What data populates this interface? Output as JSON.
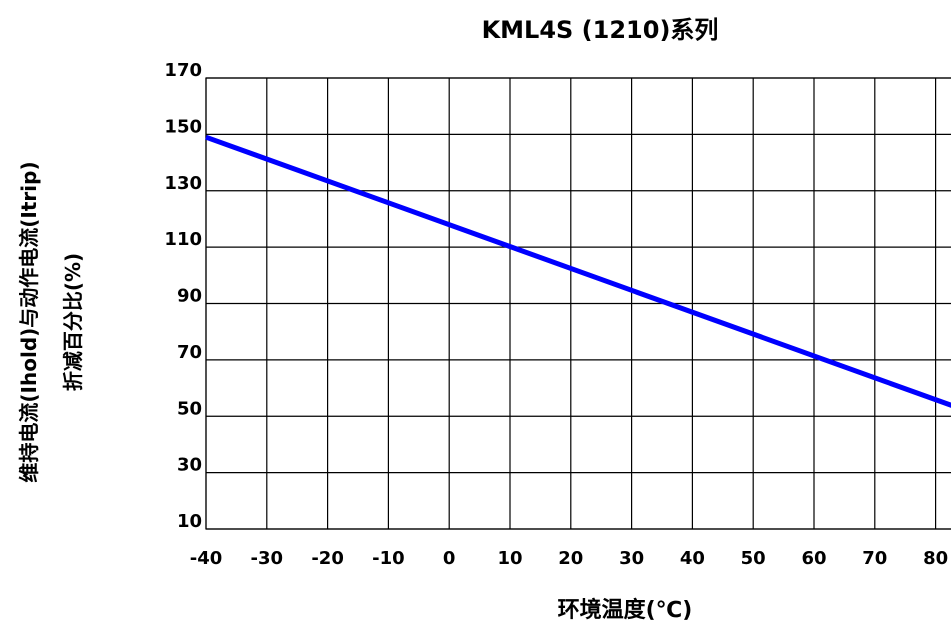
{
  "chart_data": {
    "type": "line",
    "title": "KML4S (1210)系列",
    "xlabel": "环境温度(℃)",
    "ylabel_line1": "维持电流(Ihold)与动作电流(Itrip)",
    "ylabel_line2": "折减百分比(%)",
    "x_ticks": [
      "-40",
      "-30",
      "-20",
      "-10",
      "0",
      "10",
      "20",
      "30",
      "40",
      "50",
      "60",
      "70",
      "80"
    ],
    "y_ticks": [
      "170",
      "150",
      "130",
      "110",
      "90",
      "70",
      "50",
      "30",
      "10"
    ],
    "xlim": [
      -40,
      85
    ],
    "ylim": [
      10,
      170
    ],
    "grid": true,
    "series": [
      {
        "color": "#0000ff",
        "x": [
          -40,
          85
        ],
        "y": [
          149,
          52
        ]
      }
    ]
  }
}
